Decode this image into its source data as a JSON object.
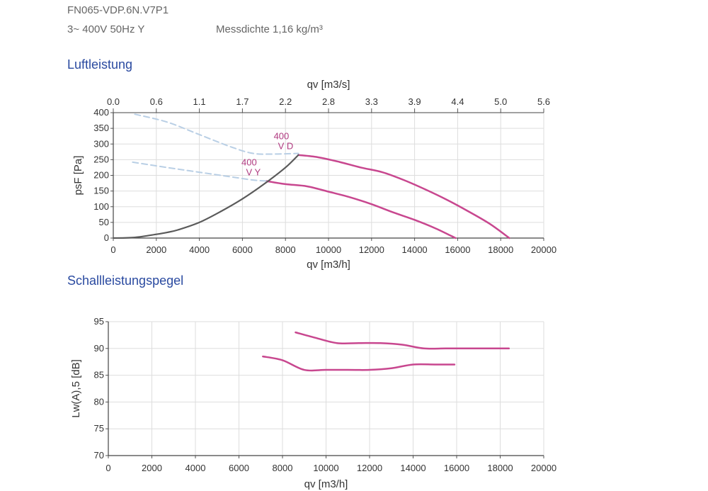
{
  "header": {
    "model": "FN065-VDP.6N.V7P1",
    "supply": "3~ 400V 50Hz Y",
    "density": "Messdichte 1,16 kg/m³"
  },
  "section1_title": "Luftleistung",
  "section2_title": "Schallleistungspegel",
  "colors": {
    "curve": "#c8478f",
    "system": "#5a5a5a",
    "dashed": "#b9cfe5",
    "grid": "#dddddd",
    "title": "#2a4aa0"
  },
  "chart_data": [
    {
      "type": "line",
      "xlabel": "qv [m3/h]",
      "xlabel_top": "qv [m3/s]",
      "ylabel": "psF [Pa]",
      "xlim": [
        0,
        20000
      ],
      "ylim": [
        0,
        400
      ],
      "x_ticks": [
        "0",
        "2000",
        "4000",
        "6000",
        "8000",
        "10000",
        "12000",
        "14000",
        "16000",
        "18000",
        "20000"
      ],
      "x_top_ticks": [
        "0.0",
        "0.6",
        "1.1",
        "1.7",
        "2.2",
        "2.8",
        "3.3",
        "3.9",
        "4.4",
        "5.0",
        "5.6"
      ],
      "y_ticks": [
        "0",
        "50",
        "100",
        "150",
        "200",
        "250",
        "300",
        "350",
        "400"
      ],
      "grid": true,
      "series": [
        {
          "name": "400 V D",
          "label_top": "400",
          "label_bottom": "V D",
          "style": "solid",
          "x": [
            8600,
            9500,
            10500,
            11500,
            12500,
            13500,
            14500,
            15500,
            16500,
            17500,
            18400
          ],
          "y": [
            265,
            258,
            243,
            225,
            210,
            185,
            155,
            122,
            85,
            45,
            0
          ]
        },
        {
          "name": "400 V Y",
          "label_top": "400",
          "label_bottom": "V Y",
          "style": "solid",
          "x": [
            7100,
            8000,
            9000,
            10000,
            11000,
            12000,
            13000,
            14000,
            15000,
            15900
          ],
          "y": [
            182,
            172,
            165,
            148,
            130,
            108,
            82,
            58,
            30,
            0
          ]
        },
        {
          "name": "",
          "style": "system",
          "x": [
            0,
            1000,
            2000,
            2500,
            3000,
            4000,
            5000,
            6000,
            7000,
            8000,
            8600
          ],
          "y": [
            0,
            2,
            12,
            18,
            26,
            50,
            85,
            125,
            172,
            225,
            265
          ]
        },
        {
          "name": "",
          "style": "dashed",
          "x": [
            1000,
            2500,
            4000,
            5500,
            6500,
            7500,
            8600
          ],
          "y": [
            395,
            370,
            330,
            290,
            270,
            268,
            270
          ]
        },
        {
          "name": "",
          "style": "dashed",
          "x": [
            900,
            2500,
            4000,
            5500,
            6500,
            7100
          ],
          "y": [
            242,
            225,
            210,
            195,
            185,
            182
          ]
        }
      ]
    },
    {
      "type": "line",
      "xlabel": "qv [m3/h]",
      "ylabel": "Lw(A),5 [dB]",
      "xlim": [
        0,
        20000
      ],
      "ylim": [
        70,
        95
      ],
      "x_ticks": [
        "0",
        "2000",
        "4000",
        "6000",
        "8000",
        "10000",
        "12000",
        "14000",
        "16000",
        "18000",
        "20000"
      ],
      "y_ticks": [
        "70",
        "75",
        "80",
        "85",
        "90",
        "95"
      ],
      "grid": true,
      "series": [
        {
          "name": "",
          "style": "solid",
          "x": [
            8600,
            9500,
            10500,
            11500,
            12500,
            13500,
            14500,
            15500,
            16500,
            17500,
            18400
          ],
          "y": [
            93,
            92,
            91,
            91,
            91,
            90.7,
            90,
            90,
            90,
            90,
            90
          ]
        },
        {
          "name": "",
          "style": "solid",
          "x": [
            7100,
            8000,
            9000,
            10000,
            11000,
            12000,
            13000,
            14000,
            15000,
            15900
          ],
          "y": [
            88.5,
            87.8,
            86,
            86,
            86,
            86,
            86.3,
            87,
            87,
            87
          ]
        }
      ]
    }
  ]
}
